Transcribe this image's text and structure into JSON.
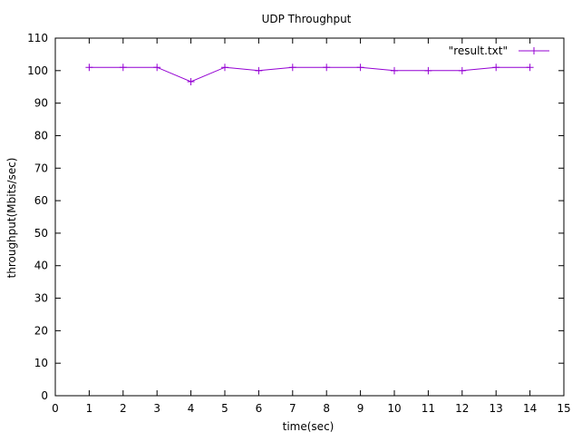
{
  "chart_data": {
    "type": "line",
    "title": "UDP Throughput",
    "xlabel": "time(sec)",
    "ylabel": "throughput(Mbits/sec)",
    "xlim": [
      0,
      15
    ],
    "ylim": [
      0,
      110
    ],
    "xticks": [
      "0",
      "1",
      "2",
      "3",
      "4",
      "5",
      "6",
      "7",
      "8",
      "9",
      "10",
      "11",
      "12",
      "13",
      "14",
      "15"
    ],
    "yticks": [
      "0",
      "10",
      "20",
      "30",
      "40",
      "50",
      "60",
      "70",
      "80",
      "90",
      "100",
      "110"
    ],
    "grid": false,
    "legend_position": "top-right",
    "series": [
      {
        "name": "\"result.txt\"",
        "color": "#9400d3",
        "marker": "plus",
        "x": [
          1,
          2,
          3,
          4,
          5,
          6,
          7,
          8,
          9,
          10,
          11,
          12,
          13,
          14
        ],
        "y": [
          101,
          101,
          101,
          96.6,
          101,
          100,
          101,
          101,
          101,
          100,
          100,
          100,
          101,
          101
        ]
      }
    ]
  }
}
